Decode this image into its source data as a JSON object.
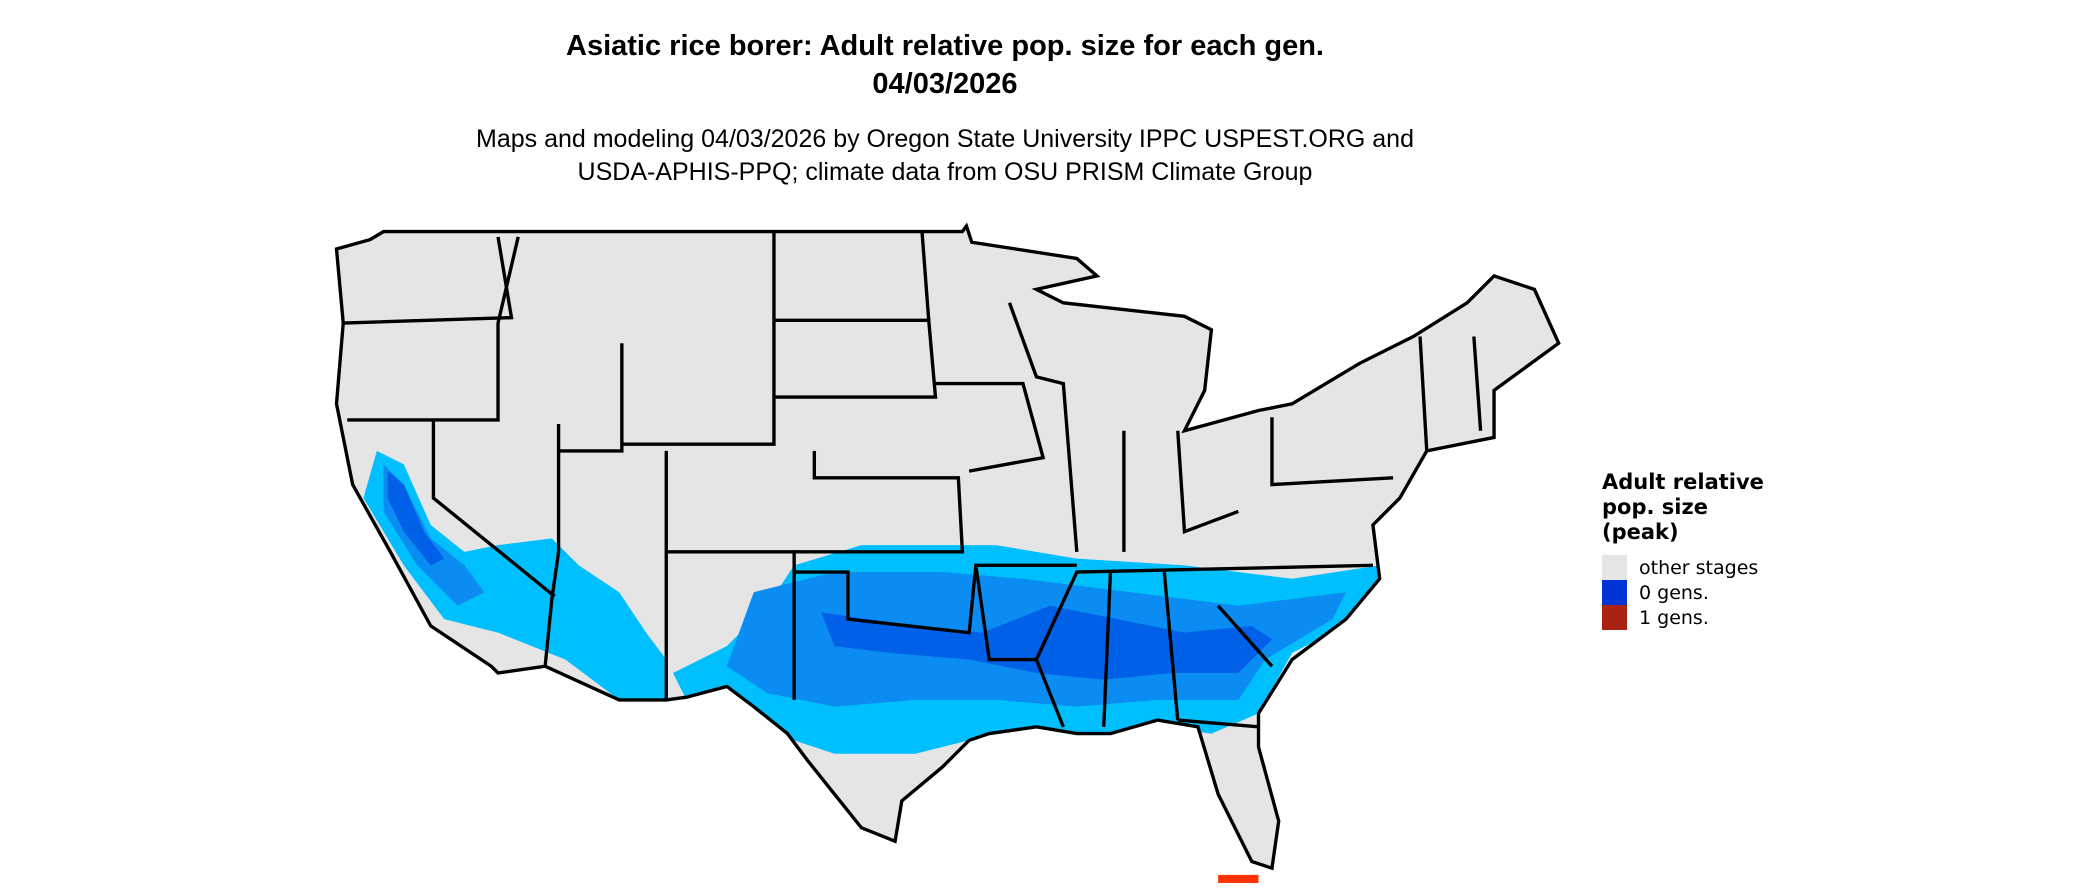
{
  "title": {
    "line1": "Asiatic rice borer: Adult relative pop. size for each gen.",
    "line2": "04/03/2026"
  },
  "subtitle": {
    "line1": "Maps and modeling 04/03/2026 by Oregon State University IPPC USPEST.ORG and",
    "line2": "USDA-APHIS-PPQ; climate data from OSU PRISM Climate Group"
  },
  "map": {
    "region": "Contiguous United States with state borders",
    "colors": {
      "land": "#e5e5e5",
      "border": "#000000",
      "zone_light": "#00bfff",
      "zone_mid": "#0a8cf2",
      "zone_dark": "#0060e8",
      "one_gen": "#ff3300"
    }
  },
  "legend": {
    "title_lines": [
      "Adult relative",
      "pop. size",
      "(peak)"
    ],
    "items": [
      {
        "label": "other stages",
        "color": "#e5e5e5"
      },
      {
        "label": "0 gens.",
        "color": "#0033d6"
      },
      {
        "label": "1 gens.",
        "color": "#aa2211"
      }
    ]
  }
}
